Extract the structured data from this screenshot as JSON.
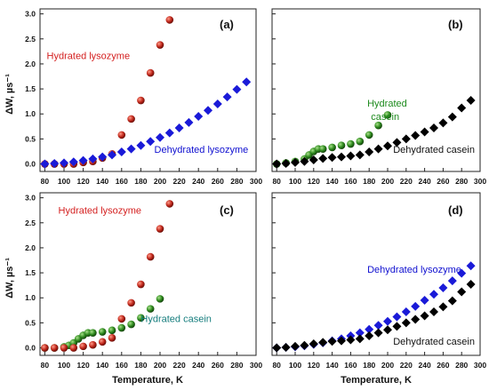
{
  "colors": {
    "hydrated_lysozyme": "#c0281c",
    "dehydrated_lysozyme": "#1a1ad8",
    "hydrated_casein": "#2e8a1e",
    "dehydrated_casein": "#000000",
    "text_red": "#d42020",
    "text_blue": "#1010d0",
    "text_green": "#1d8a1d",
    "text_teal": "#157d7d",
    "text_black": "#111111"
  },
  "figure": {
    "xlabel": "Temperature, K",
    "ylabel": "ΔW, µs⁻¹"
  },
  "chart_data": [
    {
      "type": "scatter",
      "panel_label": "(a)",
      "xlim": [
        75,
        300
      ],
      "ylim": [
        -0.15,
        3.1
      ],
      "xticks": [
        80,
        100,
        120,
        140,
        160,
        180,
        200,
        220,
        240,
        260,
        280,
        300
      ],
      "yticks": [
        0.0,
        0.5,
        1.0,
        1.5,
        2.0,
        2.5,
        3.0
      ],
      "xlabel": "",
      "ylabel": "ΔW, µs⁻¹",
      "series": [
        {
          "key": "hydrated_lysozyme",
          "marker": "sphere",
          "x": [
            80,
            90,
            100,
            110,
            120,
            130,
            140,
            150,
            160,
            170,
            180,
            190,
            200,
            210
          ],
          "y": [
            0.0,
            0.0,
            0.0,
            0.0,
            0.03,
            0.05,
            0.12,
            0.2,
            0.58,
            0.9,
            1.27,
            1.82,
            2.38,
            2.88
          ]
        },
        {
          "key": "dehydrated_lysozyme",
          "marker": "diamond",
          "x": [
            80,
            90,
            100,
            110,
            120,
            130,
            140,
            150,
            160,
            170,
            180,
            190,
            200,
            210,
            220,
            230,
            240,
            250,
            260,
            270,
            280,
            290
          ],
          "y": [
            0.0,
            0.01,
            0.02,
            0.04,
            0.07,
            0.1,
            0.14,
            0.18,
            0.24,
            0.3,
            0.37,
            0.45,
            0.53,
            0.62,
            0.72,
            0.83,
            0.95,
            1.07,
            1.2,
            1.34,
            1.49,
            1.64
          ]
        }
      ],
      "annotations": [
        {
          "text": "Hydrated lysozyme",
          "x": 82,
          "y": 2.1,
          "color_key": "text_red"
        },
        {
          "text": "Dehydrated lysozyme",
          "x": 194,
          "y": 0.22,
          "color_key": "text_blue"
        }
      ]
    },
    {
      "type": "scatter",
      "panel_label": "(b)",
      "xlim": [
        75,
        300
      ],
      "ylim": [
        -0.15,
        3.1
      ],
      "xticks": [
        80,
        100,
        120,
        140,
        160,
        180,
        200,
        220,
        240,
        260,
        280,
        300
      ],
      "yticks": [],
      "xlabel": "",
      "ylabel": "",
      "series": [
        {
          "key": "hydrated_casein",
          "marker": "sphere",
          "x": [
            80,
            90,
            100,
            110,
            115,
            120,
            125,
            130,
            140,
            150,
            160,
            170,
            180,
            190,
            200
          ],
          "y": [
            0.0,
            0.02,
            0.05,
            0.1,
            0.18,
            0.25,
            0.3,
            0.3,
            0.33,
            0.37,
            0.4,
            0.45,
            0.58,
            0.77,
            0.98
          ]
        },
        {
          "key": "dehydrated_casein",
          "marker": "diamond",
          "x": [
            80,
            90,
            100,
            110,
            120,
            130,
            140,
            150,
            160,
            170,
            180,
            190,
            200,
            210,
            220,
            230,
            240,
            250,
            260,
            270,
            280,
            290
          ],
          "y": [
            0.0,
            0.01,
            0.03,
            0.05,
            0.08,
            0.11,
            0.13,
            0.14,
            0.16,
            0.18,
            0.24,
            0.3,
            0.36,
            0.43,
            0.5,
            0.57,
            0.64,
            0.72,
            0.82,
            0.94,
            1.12,
            1.27
          ]
        }
      ],
      "annotations": [
        {
          "text": "Hydrated",
          "x": 178,
          "y": 1.15,
          "color_key": "text_green"
        },
        {
          "text": "casein",
          "x": 182,
          "y": 0.88,
          "color_key": "text_green"
        },
        {
          "text": "Dehydrated casein",
          "x": 206,
          "y": 0.22,
          "color_key": "text_black"
        }
      ]
    },
    {
      "type": "scatter",
      "panel_label": "(c)",
      "xlim": [
        75,
        300
      ],
      "ylim": [
        -0.15,
        3.1
      ],
      "xticks": [
        80,
        100,
        120,
        140,
        160,
        180,
        200,
        220,
        240,
        260,
        280,
        300
      ],
      "yticks": [
        0.0,
        0.5,
        1.0,
        1.5,
        2.0,
        2.5,
        3.0
      ],
      "xlabel": "Temperature, K",
      "ylabel": "ΔW, µs⁻¹",
      "series": [
        {
          "key": "hydrated_casein",
          "marker": "sphere",
          "x": [
            80,
            90,
            100,
            105,
            110,
            115,
            120,
            125,
            130,
            140,
            150,
            160,
            170,
            180,
            190,
            200
          ],
          "y": [
            0.0,
            0.0,
            0.02,
            0.05,
            0.1,
            0.18,
            0.25,
            0.3,
            0.3,
            0.32,
            0.35,
            0.4,
            0.47,
            0.6,
            0.78,
            0.98
          ]
        },
        {
          "key": "hydrated_lysozyme",
          "marker": "sphere",
          "x": [
            80,
            90,
            100,
            110,
            120,
            130,
            140,
            150,
            160,
            170,
            180,
            190,
            200,
            210
          ],
          "y": [
            0.0,
            0.0,
            0.0,
            0.0,
            0.03,
            0.06,
            0.12,
            0.2,
            0.58,
            0.9,
            1.27,
            1.82,
            2.38,
            2.88
          ]
        }
      ],
      "annotations": [
        {
          "text": "Hydrated lysozyme",
          "x": 94,
          "y": 2.68,
          "color_key": "text_red"
        },
        {
          "text": "Hydrated casein",
          "x": 180,
          "y": 0.52,
          "color_key": "text_teal"
        }
      ]
    },
    {
      "type": "scatter",
      "panel_label": "(d)",
      "xlim": [
        75,
        300
      ],
      "ylim": [
        -0.15,
        3.1
      ],
      "xticks": [
        80,
        100,
        120,
        140,
        160,
        180,
        200,
        220,
        240,
        260,
        280,
        300
      ],
      "yticks": [],
      "xlabel": "Temperature, K",
      "ylabel": "",
      "series": [
        {
          "key": "dehydrated_lysozyme",
          "marker": "diamond",
          "x": [
            80,
            90,
            100,
            110,
            120,
            130,
            140,
            150,
            160,
            170,
            180,
            190,
            200,
            210,
            220,
            230,
            240,
            250,
            260,
            270,
            280,
            290
          ],
          "y": [
            0.0,
            0.01,
            0.02,
            0.04,
            0.07,
            0.1,
            0.14,
            0.18,
            0.24,
            0.3,
            0.37,
            0.45,
            0.53,
            0.62,
            0.72,
            0.83,
            0.95,
            1.07,
            1.2,
            1.34,
            1.49,
            1.64
          ]
        },
        {
          "key": "dehydrated_casein",
          "marker": "diamond",
          "x": [
            80,
            90,
            100,
            110,
            120,
            130,
            140,
            150,
            160,
            170,
            180,
            190,
            200,
            210,
            220,
            230,
            240,
            250,
            260,
            270,
            280,
            290
          ],
          "y": [
            0.0,
            0.01,
            0.03,
            0.05,
            0.08,
            0.11,
            0.13,
            0.14,
            0.16,
            0.18,
            0.24,
            0.3,
            0.36,
            0.43,
            0.5,
            0.57,
            0.64,
            0.72,
            0.82,
            0.94,
            1.12,
            1.27
          ]
        }
      ],
      "annotations": [
        {
          "text": "Dehydrated lysozyme",
          "x": 178,
          "y": 1.5,
          "color_key": "text_blue"
        },
        {
          "text": "Dehydrated casein",
          "x": 206,
          "y": 0.06,
          "color_key": "text_black"
        }
      ]
    }
  ]
}
